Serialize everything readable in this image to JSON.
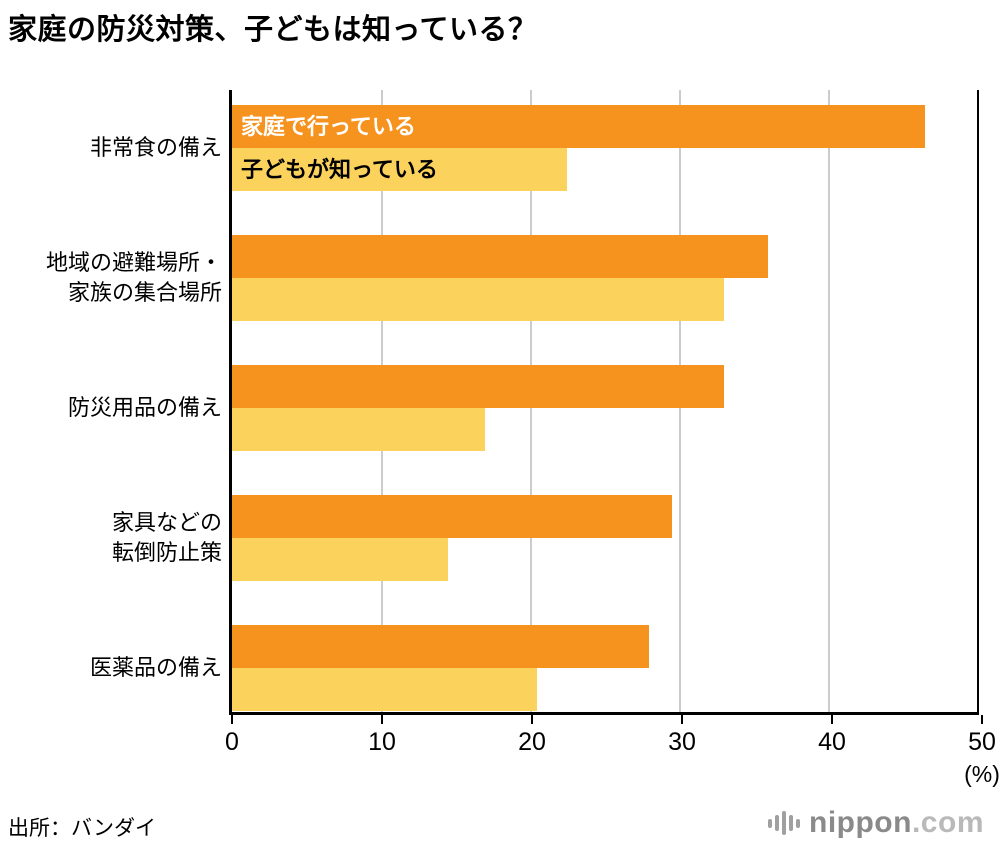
{
  "title": "家庭の防災対策、子どもは知っている？",
  "source": "出所：バンダイ",
  "logo": {
    "name": "nippon",
    "tld": ".com"
  },
  "chart_data": {
    "type": "bar",
    "orientation": "horizontal",
    "title": "家庭の防災対策、子どもは知っている？",
    "categories": [
      [
        "非常食の備え"
      ],
      [
        "地域の避難場所・",
        "家族の集合場所"
      ],
      [
        "防災用品の備え"
      ],
      [
        "家具などの",
        "転倒防止策"
      ],
      [
        "医薬品の備え"
      ]
    ],
    "series": [
      {
        "name": "家庭で行っている",
        "color": "#F6921E",
        "values": [
          46.5,
          36,
          33,
          29.5,
          28
        ]
      },
      {
        "name": "子どもが知っている",
        "color": "#FBD35C",
        "values": [
          22.5,
          33,
          17,
          14.5,
          20.5
        ]
      }
    ],
    "xlim": [
      0,
      50
    ],
    "x_ticks": [
      0,
      10,
      20,
      30,
      40,
      50
    ],
    "x_unit": "(%)",
    "grid": true,
    "legend_position": "inside-first-bars"
  }
}
